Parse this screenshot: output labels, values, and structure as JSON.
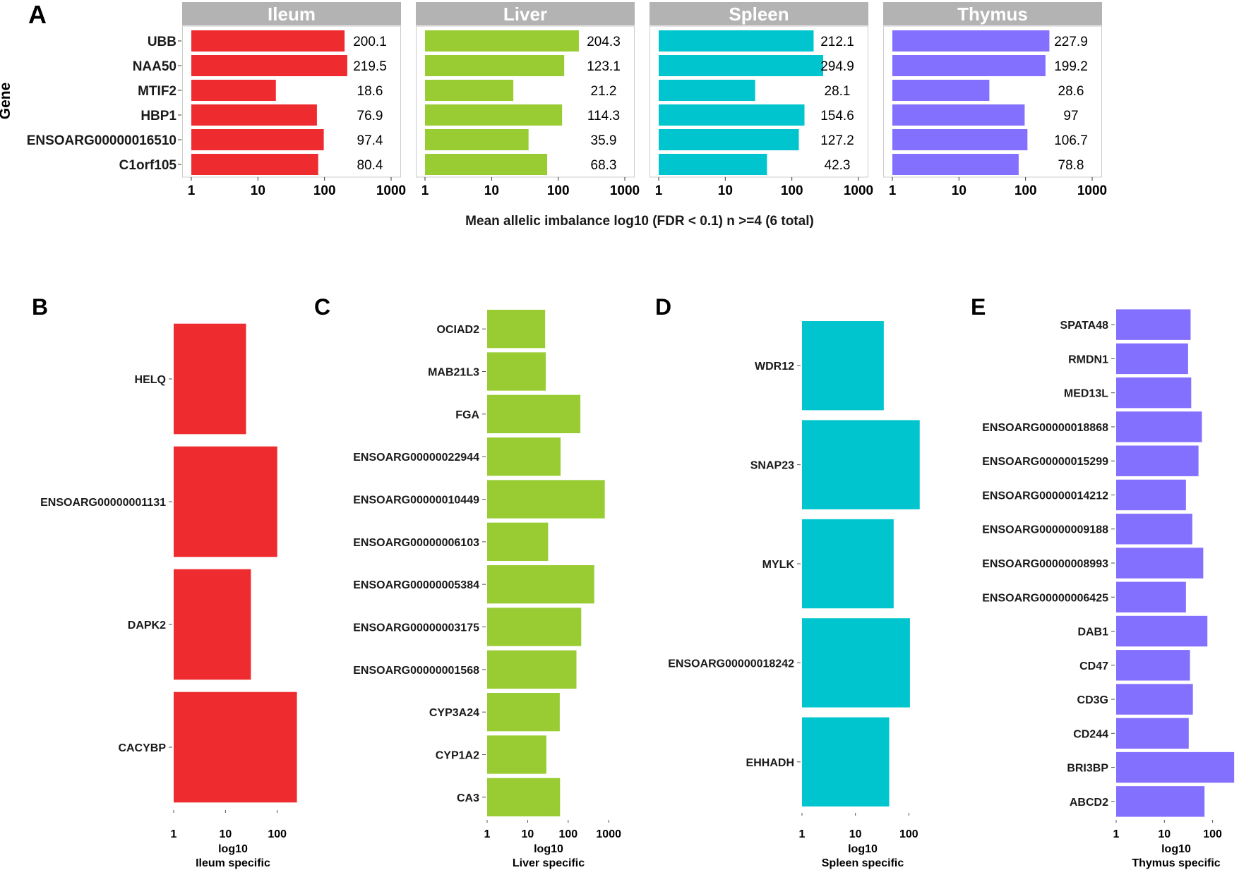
{
  "panel_letters": [
    "A",
    "B",
    "C",
    "D",
    "E"
  ],
  "panel_a": {
    "y_axis_label": "Gene",
    "x_axis_title": "Mean allelic imbalance log10 (FDR < 0.1)  n >=4 (6 total)",
    "tick_labels": [
      "1",
      "10",
      "100",
      "1000"
    ]
  },
  "panel_b": {
    "x_label_line1": "log10",
    "x_label_line2": "Ileum specific",
    "tick_labels": [
      "1",
      "10",
      "100"
    ]
  },
  "panel_c": {
    "x_label_line1": "log10",
    "x_label_line2": "Liver specific",
    "tick_labels": [
      "1",
      "10",
      "100",
      "1000"
    ]
  },
  "panel_d": {
    "x_label_line1": "log10",
    "x_label_line2": "Spleen specific",
    "tick_labels": [
      "1",
      "10",
      "100"
    ]
  },
  "panel_e": {
    "x_label_line1": "log10",
    "x_label_line2": "Thymus specific",
    "tick_labels": [
      "1",
      "10",
      "100"
    ]
  },
  "colors": {
    "ileum": "#EE2B2E",
    "liver": "#99CC33",
    "spleen": "#00C5CF",
    "thymus": "#8470FF",
    "strip": "#B3B3B3",
    "frame": "#cccccc"
  },
  "chart_data": [
    {
      "panel": "A",
      "type": "bar",
      "orientation": "horizontal",
      "xscale": "log10",
      "xlim": [
        1,
        1000
      ],
      "categories": [
        "UBB",
        "NAA50",
        "MTIF2",
        "HBP1",
        "ENSOARG00000016510",
        "C1orf105"
      ],
      "xlabel": "Mean allelic imbalance log10 (FDR < 0.1)  n >=4 (6 total)",
      "ylabel": "Gene",
      "facets": [
        {
          "name": "Ileum",
          "values": [
            200.1,
            219.5,
            18.6,
            76.9,
            97.4,
            80.4
          ],
          "labels": [
            "200.1",
            "219.5",
            "18.6",
            "76.9",
            "97.4",
            "80.4"
          ]
        },
        {
          "name": "Liver",
          "values": [
            204.3,
            123.1,
            21.2,
            114.3,
            35.9,
            68.3
          ],
          "labels": [
            "204.3",
            "123.1",
            "21.2",
            "114.3",
            "35.9",
            "68.3"
          ]
        },
        {
          "name": "Spleen",
          "values": [
            212.1,
            294.9,
            28.1,
            154.6,
            127.2,
            42.3
          ],
          "labels": [
            "212.1",
            "294.9",
            "28.1",
            "154.6",
            "127.2",
            "42.3"
          ]
        },
        {
          "name": "Thymus",
          "values": [
            227.9,
            199.2,
            28.6,
            97,
            106.7,
            78.8
          ],
          "labels": [
            "227.9",
            "199.2",
            "28.6",
            "97",
            "106.7",
            "78.8"
          ]
        }
      ]
    },
    {
      "panel": "B",
      "type": "bar",
      "orientation": "horizontal",
      "xscale": "log10",
      "xlim": [
        1,
        250
      ],
      "xlabel": "log10 Ileum specific",
      "categories": [
        "HELQ",
        "ENSOARG00000001131",
        "DAPK2",
        "CACYBP"
      ],
      "values": [
        25,
        100,
        31,
        240
      ]
    },
    {
      "panel": "C",
      "type": "bar",
      "orientation": "horizontal",
      "xscale": "log10",
      "xlim": [
        1,
        1000
      ],
      "xlabel": "log10 Liver specific",
      "categories": [
        "OCIAD2",
        "MAB21L3",
        "FGA",
        "ENSOARG00000022944",
        "ENSOARG00000010449",
        "ENSOARG00000006103",
        "ENSOARG00000005384",
        "ENSOARG00000003175",
        "ENSOARG00000001568",
        "CYP3A24",
        "CYP1A2",
        "CA3"
      ],
      "values": [
        27,
        28,
        200,
        65,
        800,
        32,
        440,
        210,
        160,
        62,
        29,
        63
      ]
    },
    {
      "panel": "D",
      "type": "bar",
      "orientation": "horizontal",
      "xscale": "log10",
      "xlim": [
        1,
        200
      ],
      "xlabel": "log10 Spleen specific",
      "categories": [
        "WDR12",
        "SNAP23",
        "MYLK",
        "ENSOARG00000018242",
        "EHHADH"
      ],
      "values": [
        34,
        160,
        52,
        105,
        43
      ]
    },
    {
      "panel": "E",
      "type": "bar",
      "orientation": "horizontal",
      "xscale": "log10",
      "xlim": [
        1,
        300
      ],
      "xlabel": "log10 Thymus specific",
      "categories": [
        "SPATA48",
        "RMDN1",
        "MED13L",
        "ENSOARG00000018868",
        "ENSOARG00000015299",
        "ENSOARG00000014212",
        "ENSOARG00000009188",
        "ENSOARG00000008993",
        "ENSOARG00000006425",
        "DAB1",
        "CD47",
        "CD3G",
        "CD244",
        "BRI3BP",
        "ABCD2"
      ],
      "values": [
        35,
        31,
        36,
        60,
        51,
        28,
        38,
        64,
        28,
        78,
        34,
        39,
        32,
        280,
        68
      ]
    }
  ]
}
